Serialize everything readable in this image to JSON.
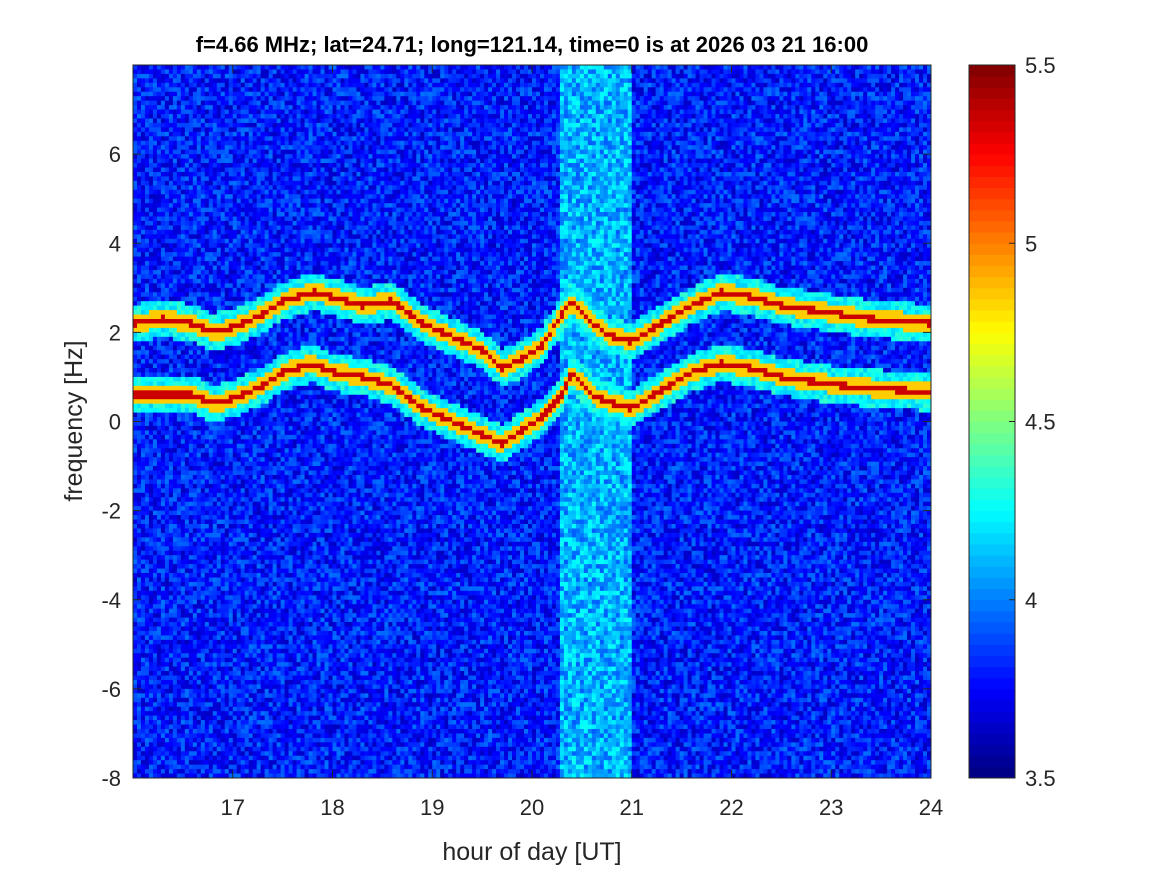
{
  "chart_data": {
    "type": "heatmap",
    "title": "f=4.66 MHz;  lat=24.71; long=121.14, time=0 is at 2026 03 21 16:00",
    "xlabel": "hour of day [UT]",
    "ylabel": "frequency [Hz]",
    "xlim": [
      16,
      24
    ],
    "ylim": [
      -8,
      8
    ],
    "xticks": [
      17,
      18,
      19,
      20,
      21,
      22,
      23,
      24
    ],
    "yticks": [
      -8,
      -6,
      -4,
      -2,
      0,
      2,
      4,
      6
    ],
    "colormap": "jet",
    "clim": [
      3.5,
      5.5
    ],
    "colorbar_ticks": [
      3.5,
      4,
      4.5,
      5,
      5.5
    ],
    "background_level": 3.8,
    "noise_band": {
      "x_range": [
        20.3,
        21.0
      ],
      "level": 4.1
    },
    "series": [
      {
        "x": [
          16.0,
          16.3,
          16.6,
          16.8,
          17.0,
          17.3,
          17.5,
          17.8,
          18.0,
          18.3,
          18.6,
          18.9,
          19.2,
          19.5,
          19.7,
          19.9,
          20.1,
          20.3,
          20.4,
          20.6,
          20.8,
          21.0,
          21.3,
          21.6,
          21.9,
          22.2,
          22.5,
          22.8,
          23.1,
          23.4,
          23.7,
          24.0
        ],
        "y": [
          0.6,
          0.6,
          0.6,
          0.4,
          0.5,
          0.8,
          1.1,
          1.3,
          1.1,
          1.0,
          0.8,
          0.3,
          0.0,
          -0.3,
          -0.5,
          -0.2,
          0.1,
          0.6,
          1.1,
          0.6,
          0.4,
          0.3,
          0.7,
          1.1,
          1.3,
          1.2,
          1.0,
          0.9,
          0.8,
          0.75,
          0.7,
          0.65
        ]
      },
      {
        "x": [
          16.0,
          16.3,
          16.6,
          16.8,
          17.0,
          17.3,
          17.5,
          17.8,
          18.0,
          18.3,
          18.6,
          18.9,
          19.2,
          19.5,
          19.7,
          19.9,
          20.1,
          20.3,
          20.4,
          20.6,
          20.8,
          21.0,
          21.3,
          21.6,
          21.9,
          22.2,
          22.5,
          22.8,
          23.1,
          23.4,
          23.7,
          24.0
        ],
        "y": [
          2.2,
          2.3,
          2.2,
          2.0,
          2.1,
          2.4,
          2.7,
          2.9,
          2.8,
          2.6,
          2.7,
          2.2,
          1.9,
          1.6,
          1.2,
          1.4,
          1.7,
          2.4,
          2.7,
          2.2,
          1.9,
          1.8,
          2.2,
          2.6,
          2.9,
          2.8,
          2.6,
          2.5,
          2.4,
          2.3,
          2.25,
          2.2
        ]
      }
    ]
  }
}
